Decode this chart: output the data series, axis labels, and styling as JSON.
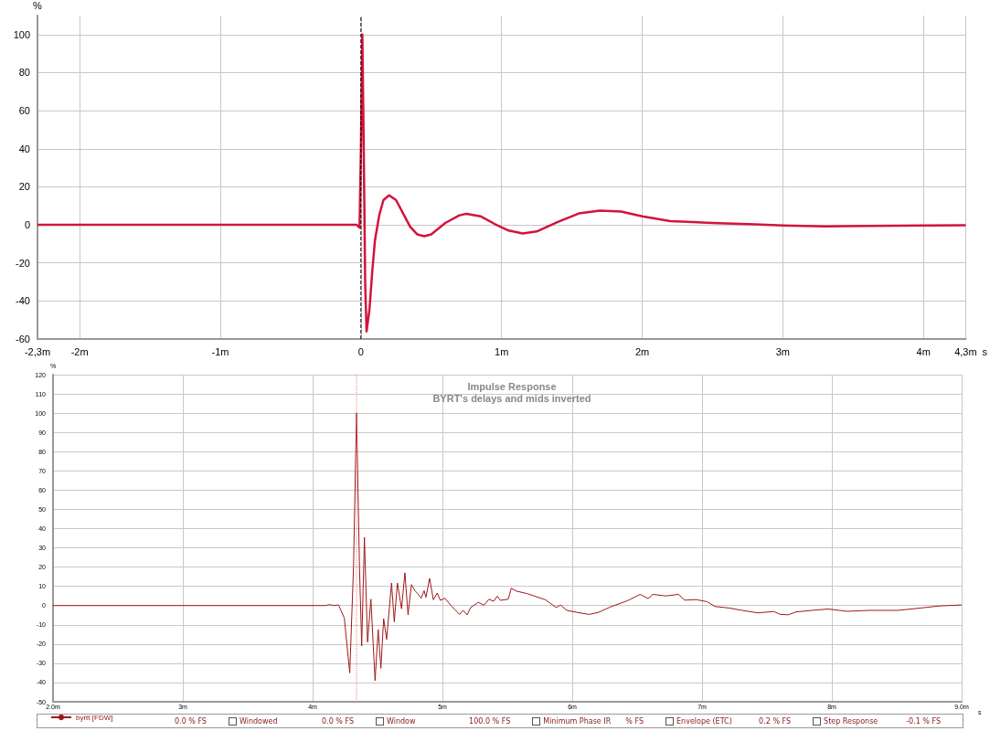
{
  "chart_data": [
    {
      "type": "line",
      "ylabel": "%",
      "xlabel": "s",
      "grid": true,
      "x": [
        -2.3,
        -0.03,
        -0.01,
        0,
        0.01,
        0.02,
        0.03,
        0.04,
        0.06,
        0.08,
        0.1,
        0.13,
        0.16,
        0.2,
        0.25,
        0.3,
        0.35,
        0.4,
        0.45,
        0.5,
        0.6,
        0.7,
        0.75,
        0.85,
        0.95,
        1.05,
        1.15,
        1.25,
        1.4,
        1.55,
        1.7,
        1.85,
        2,
        2.2,
        2.5,
        2.8,
        3,
        3.3,
        3.6,
        4,
        4.3
      ],
      "series": [
        {
          "color": "#d2143c",
          "values": [
            0,
            0,
            -1.5,
            40,
            100,
            40,
            -30,
            -56,
            -45,
            -25,
            -8,
            5,
            13,
            15.5,
            13,
            6,
            -1,
            -5,
            -6,
            -5,
            1,
            5,
            5.8,
            4.5,
            0.5,
            -3,
            -4.5,
            -3.5,
            1.5,
            6,
            7.5,
            7,
            4.5,
            2,
            1,
            0.3,
            -0.3,
            -0.8,
            -0.6,
            -0.3,
            -0.2
          ]
        }
      ],
      "xlim": [
        -2.3,
        4.3
      ],
      "xticks": [
        {
          "value": -2.3,
          "label": "-2,3m"
        },
        {
          "value": -2,
          "label": "-2m"
        },
        {
          "value": -1,
          "label": "-1m"
        },
        0,
        {
          "value": 1,
          "label": "1m"
        },
        {
          "value": 2,
          "label": "2m"
        },
        {
          "value": 3,
          "label": "3m"
        },
        {
          "value": 4,
          "label": "4m"
        },
        {
          "value": 4.3,
          "label": "4,3m"
        }
      ],
      "ylim": [
        -60,
        110
      ],
      "yticks": [
        -60,
        -40,
        -20,
        0,
        20,
        40,
        60,
        80,
        100
      ],
      "ref_lines": [
        {
          "axis": "x",
          "value": 0,
          "color": "#000000",
          "line_style": "dashed"
        }
      ]
    },
    {
      "type": "line",
      "title": "Impulse Response",
      "subtitle": "BYRT's delays and mids inverted",
      "ylabel": "%",
      "xlabel": "s",
      "grid": true,
      "legend": "bottom left",
      "x": [
        2,
        4.1,
        4.13,
        4.16,
        4.2,
        4.244,
        4.286,
        4.315,
        4.338,
        4.361,
        4.378,
        4.399,
        4.423,
        4.449,
        4.481,
        4.505,
        4.526,
        4.547,
        4.57,
        4.608,
        4.629,
        4.653,
        4.685,
        4.711,
        4.735,
        4.761,
        4.789,
        4.808,
        4.836,
        4.859,
        4.873,
        4.901,
        4.93,
        4.96,
        4.984,
        5.019,
        5.066,
        5.132,
        5.16,
        5.19,
        5.218,
        5.277,
        5.319,
        5.359,
        5.394,
        5.423,
        5.446,
        5.507,
        5.53,
        5.57,
        5.653,
        5.723,
        5.794,
        5.875,
        5.911,
        5.958,
        6.032,
        6.13,
        6.204,
        6.302,
        6.425,
        6.523,
        6.585,
        6.621,
        6.72,
        6.818,
        6.867,
        6.953,
        7.039,
        7.1,
        7.21,
        7.308,
        7.431,
        7.553,
        7.603,
        7.664,
        7.725,
        7.848,
        7.971,
        8.118,
        8.289,
        8.51,
        8.682,
        8.83,
        9
      ],
      "series": [
        {
          "name": "byrtt [FDW]",
          "color": "#a01818",
          "values": [
            0,
            0,
            0.5,
            0,
            0.3,
            -6.5,
            -35,
            20,
            100,
            20,
            -21,
            35.5,
            -19,
            3.3,
            -39,
            -12.5,
            -32.6,
            -6.8,
            -17.6,
            11.7,
            -8.4,
            11.7,
            -1.7,
            17,
            -4.9,
            10.9,
            7.7,
            6.2,
            3.8,
            7.7,
            4.3,
            14.1,
            3,
            6.5,
            2.7,
            3.8,
            0,
            -4.6,
            -2.5,
            -4.9,
            -1,
            1.7,
            0.2,
            3.3,
            2.2,
            4.9,
            2.7,
            3.3,
            9,
            7.5,
            6.2,
            4.6,
            3,
            -1,
            0.2,
            -2.5,
            -3.5,
            -4.6,
            -3.5,
            -0.5,
            2.5,
            5.8,
            3.6,
            5.8,
            5,
            5.8,
            2.8,
            3.1,
            2,
            -0.5,
            -1.3,
            -2.5,
            -3.8,
            -3.1,
            -4.6,
            -4.8,
            -3.3,
            -2.5,
            -1.8,
            -3,
            -2.5,
            -2.5,
            -1.3,
            -0.2,
            0.3
          ]
        }
      ],
      "xlim": [
        2,
        9
      ],
      "xticks": [
        {
          "value": 2,
          "label": "2.0m"
        },
        {
          "value": 3,
          "label": "3m"
        },
        {
          "value": 4,
          "label": "4m"
        },
        {
          "value": 5,
          "label": "5m"
        },
        {
          "value": 6,
          "label": "6m"
        },
        {
          "value": 7,
          "label": "7m"
        },
        {
          "value": 8,
          "label": "8m"
        },
        {
          "value": 9,
          "label": "9.0m"
        }
      ],
      "ylim": [
        -50,
        120
      ],
      "yticks": [
        -50,
        -40,
        -30,
        -20,
        -10,
        0,
        10,
        20,
        30,
        40,
        50,
        60,
        70,
        80,
        90,
        100,
        110,
        120
      ],
      "ref_lines": [
        {
          "axis": "x",
          "value": 4.338,
          "color": "#f08080",
          "line_style": "dotted"
        }
      ],
      "annotations": [
        "0.0 % FS",
        "Windowed",
        "0.0 % FS",
        "Window",
        "100.0 % FS",
        "Minimum Phase IR",
        "% FS",
        "Envelope (ETC)",
        "0.2 % FS",
        "Step Response",
        "-0.1 % FS"
      ]
    }
  ]
}
